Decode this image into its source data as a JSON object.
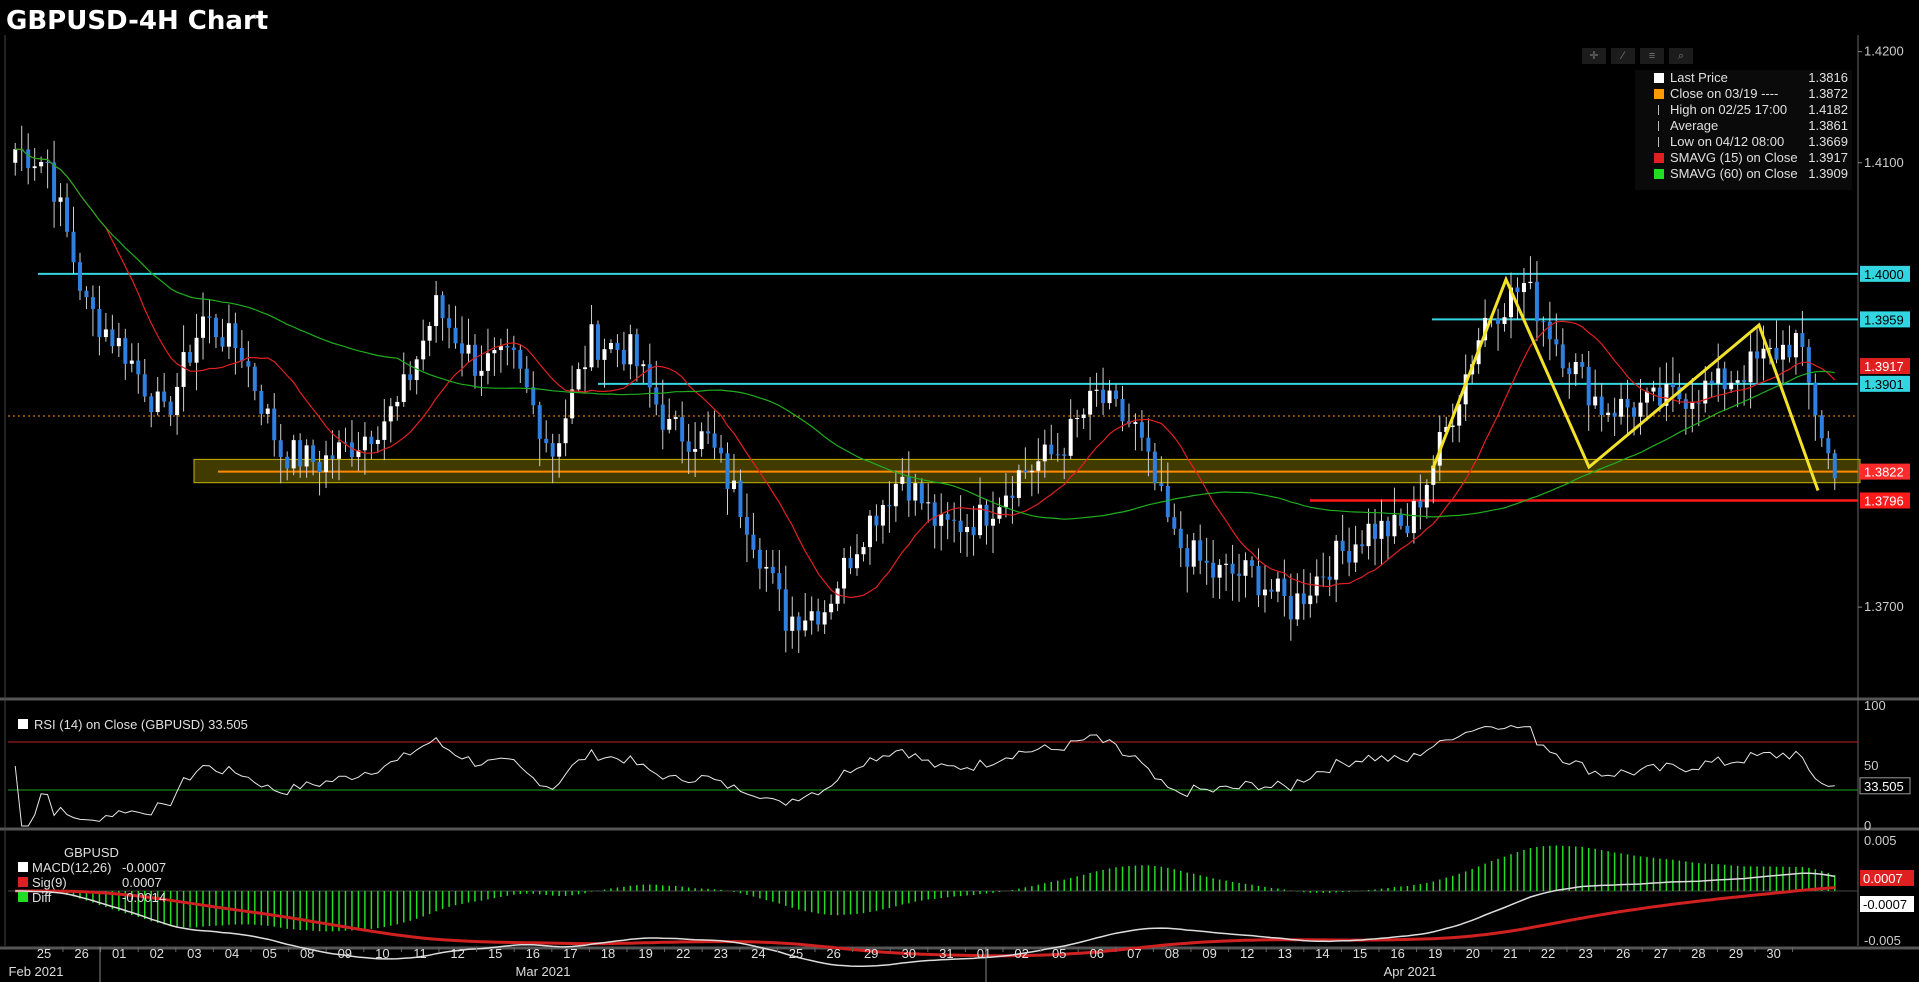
{
  "title": "GBPUSD-4H Chart",
  "colors": {
    "up": "#ffffff",
    "down": "#2f7fe0",
    "sma15": "#e02020",
    "sma60": "#1fae1f",
    "cyan": "#33d6e0",
    "yellow": "#f2e22a",
    "red": "#ff1a1a",
    "zone": "#c8b400"
  },
  "legend": {
    "items": [
      {
        "label": "Last Price",
        "value": "1.3816",
        "color": "#ffffff",
        "icon": "square"
      },
      {
        "label": "Close on 03/19 ----",
        "value": "1.3872",
        "color": "#ff9a00",
        "icon": "square"
      },
      {
        "label": "High on 02/25 17:00",
        "value": "1.4182",
        "color": "#bbbbbb",
        "icon": "high-marker-icon"
      },
      {
        "label": "Average",
        "value": "1.3861",
        "color": "#bbbbbb",
        "icon": "average-marker-icon"
      },
      {
        "label": "Low on 04/12 08:00",
        "value": "1.3669",
        "color": "#bbbbbb",
        "icon": "low-marker-icon"
      },
      {
        "label": "SMAVG (15)  on Close",
        "value": "1.3917",
        "color": "#e02020",
        "icon": "square"
      },
      {
        "label": "SMAVG (60)  on Close",
        "value": "1.3909",
        "color": "#22dd22",
        "icon": "square"
      }
    ]
  },
  "price_axis": {
    "ticks": [
      "1.4200",
      "1.4100",
      "1.4000",
      "1.3700"
    ],
    "badges": [
      {
        "text": "1.4000",
        "bg": "#33d6e0",
        "fg": "#000000"
      },
      {
        "text": "1.3959",
        "bg": "#33d6e0",
        "fg": "#000000"
      },
      {
        "text": "1.3917",
        "bg": "#e02020",
        "fg": "#ffffff"
      },
      {
        "text": "1.3901",
        "bg": "#33d6e0",
        "fg": "#000000"
      },
      {
        "text": "1.3822",
        "bg": "#ff2a2a",
        "fg": "#ffffff"
      },
      {
        "text": "1.3796",
        "bg": "#ff1a1a",
        "fg": "#ffffff"
      }
    ]
  },
  "rsi": {
    "legend": "RSI (14)  on Close (GBPUSD) 33.505",
    "ticks": [
      "100",
      "50",
      "0"
    ],
    "badge": "33.505"
  },
  "macd": {
    "symbol": "GBPUSD",
    "rows": [
      {
        "label": "MACD(12,26)",
        "value": "-0.0007",
        "color": "#ffffff"
      },
      {
        "label": "Sig(9)",
        "value": "0.0007",
        "color": "#e02020"
      },
      {
        "label": "Diff",
        "value": "-0.0014",
        "color": "#22dd22"
      }
    ],
    "ticks": [
      "0.005",
      "0",
      "-0.005"
    ],
    "badges": [
      {
        "text": "0.0007",
        "bg": "#e02020",
        "fg": "#ffffff"
      },
      {
        "text": "-0.0007",
        "bg": "#ffffff",
        "fg": "#000000"
      }
    ]
  },
  "x_axis": {
    "days": [
      "25",
      "26",
      "01",
      "02",
      "03",
      "04",
      "05",
      "08",
      "09",
      "10",
      "11",
      "12",
      "15",
      "16",
      "17",
      "18",
      "19",
      "22",
      "23",
      "24",
      "25",
      "26",
      "29",
      "30",
      "31",
      "01",
      "02",
      "05",
      "06",
      "07",
      "08",
      "09",
      "12",
      "13",
      "14",
      "15",
      "16",
      "19",
      "20",
      "21",
      "22",
      "23",
      "26",
      "27",
      "28",
      "29",
      "30"
    ],
    "months": [
      "Feb 2021",
      "Mar 2021",
      "Apr 2021"
    ]
  },
  "chart_data": [
    {
      "type": "candlestick",
      "title": "GBPUSD-4H Chart",
      "x_start": "2021-02-25",
      "x_end": "2021-04-30",
      "ylim": [
        1.362,
        1.4215
      ],
      "day_closes": [
        1.41,
        1.397,
        1.393,
        1.387,
        1.396,
        1.393,
        1.384,
        1.383,
        1.385,
        1.388,
        1.397,
        1.392,
        1.392,
        1.384,
        1.394,
        1.393,
        1.386,
        1.385,
        1.378,
        1.369,
        1.37,
        1.377,
        1.382,
        1.377,
        1.378,
        1.382,
        1.384,
        1.389,
        1.386,
        1.376,
        1.373,
        1.373,
        1.37,
        1.374,
        1.377,
        1.377,
        1.386,
        1.396,
        1.399,
        1.393,
        1.388,
        1.388,
        1.389,
        1.39,
        1.392,
        1.394,
        1.3816
      ],
      "horizontal_levels": [
        1.4,
        1.3959,
        1.3901
      ],
      "support_zone": [
        1.3812,
        1.3833
      ],
      "support_line": 1.3822,
      "red_line": 1.3796,
      "dotted_line": 1.3872,
      "last_price": 1.3816
    },
    {
      "type": "line",
      "title": "RSI (14)  on Close (GBPUSD)",
      "ylim": [
        0,
        100
      ],
      "levels": [
        70,
        30
      ],
      "last": 33.505
    },
    {
      "type": "line",
      "title": "MACD(12,26)",
      "series": [
        {
          "name": "MACD(12,26)",
          "last": -0.0007
        },
        {
          "name": "Sig(9)",
          "last": 0.0007
        },
        {
          "name": "Diff",
          "last": -0.0014
        }
      ],
      "ylim": [
        -0.0055,
        0.0055
      ]
    }
  ]
}
